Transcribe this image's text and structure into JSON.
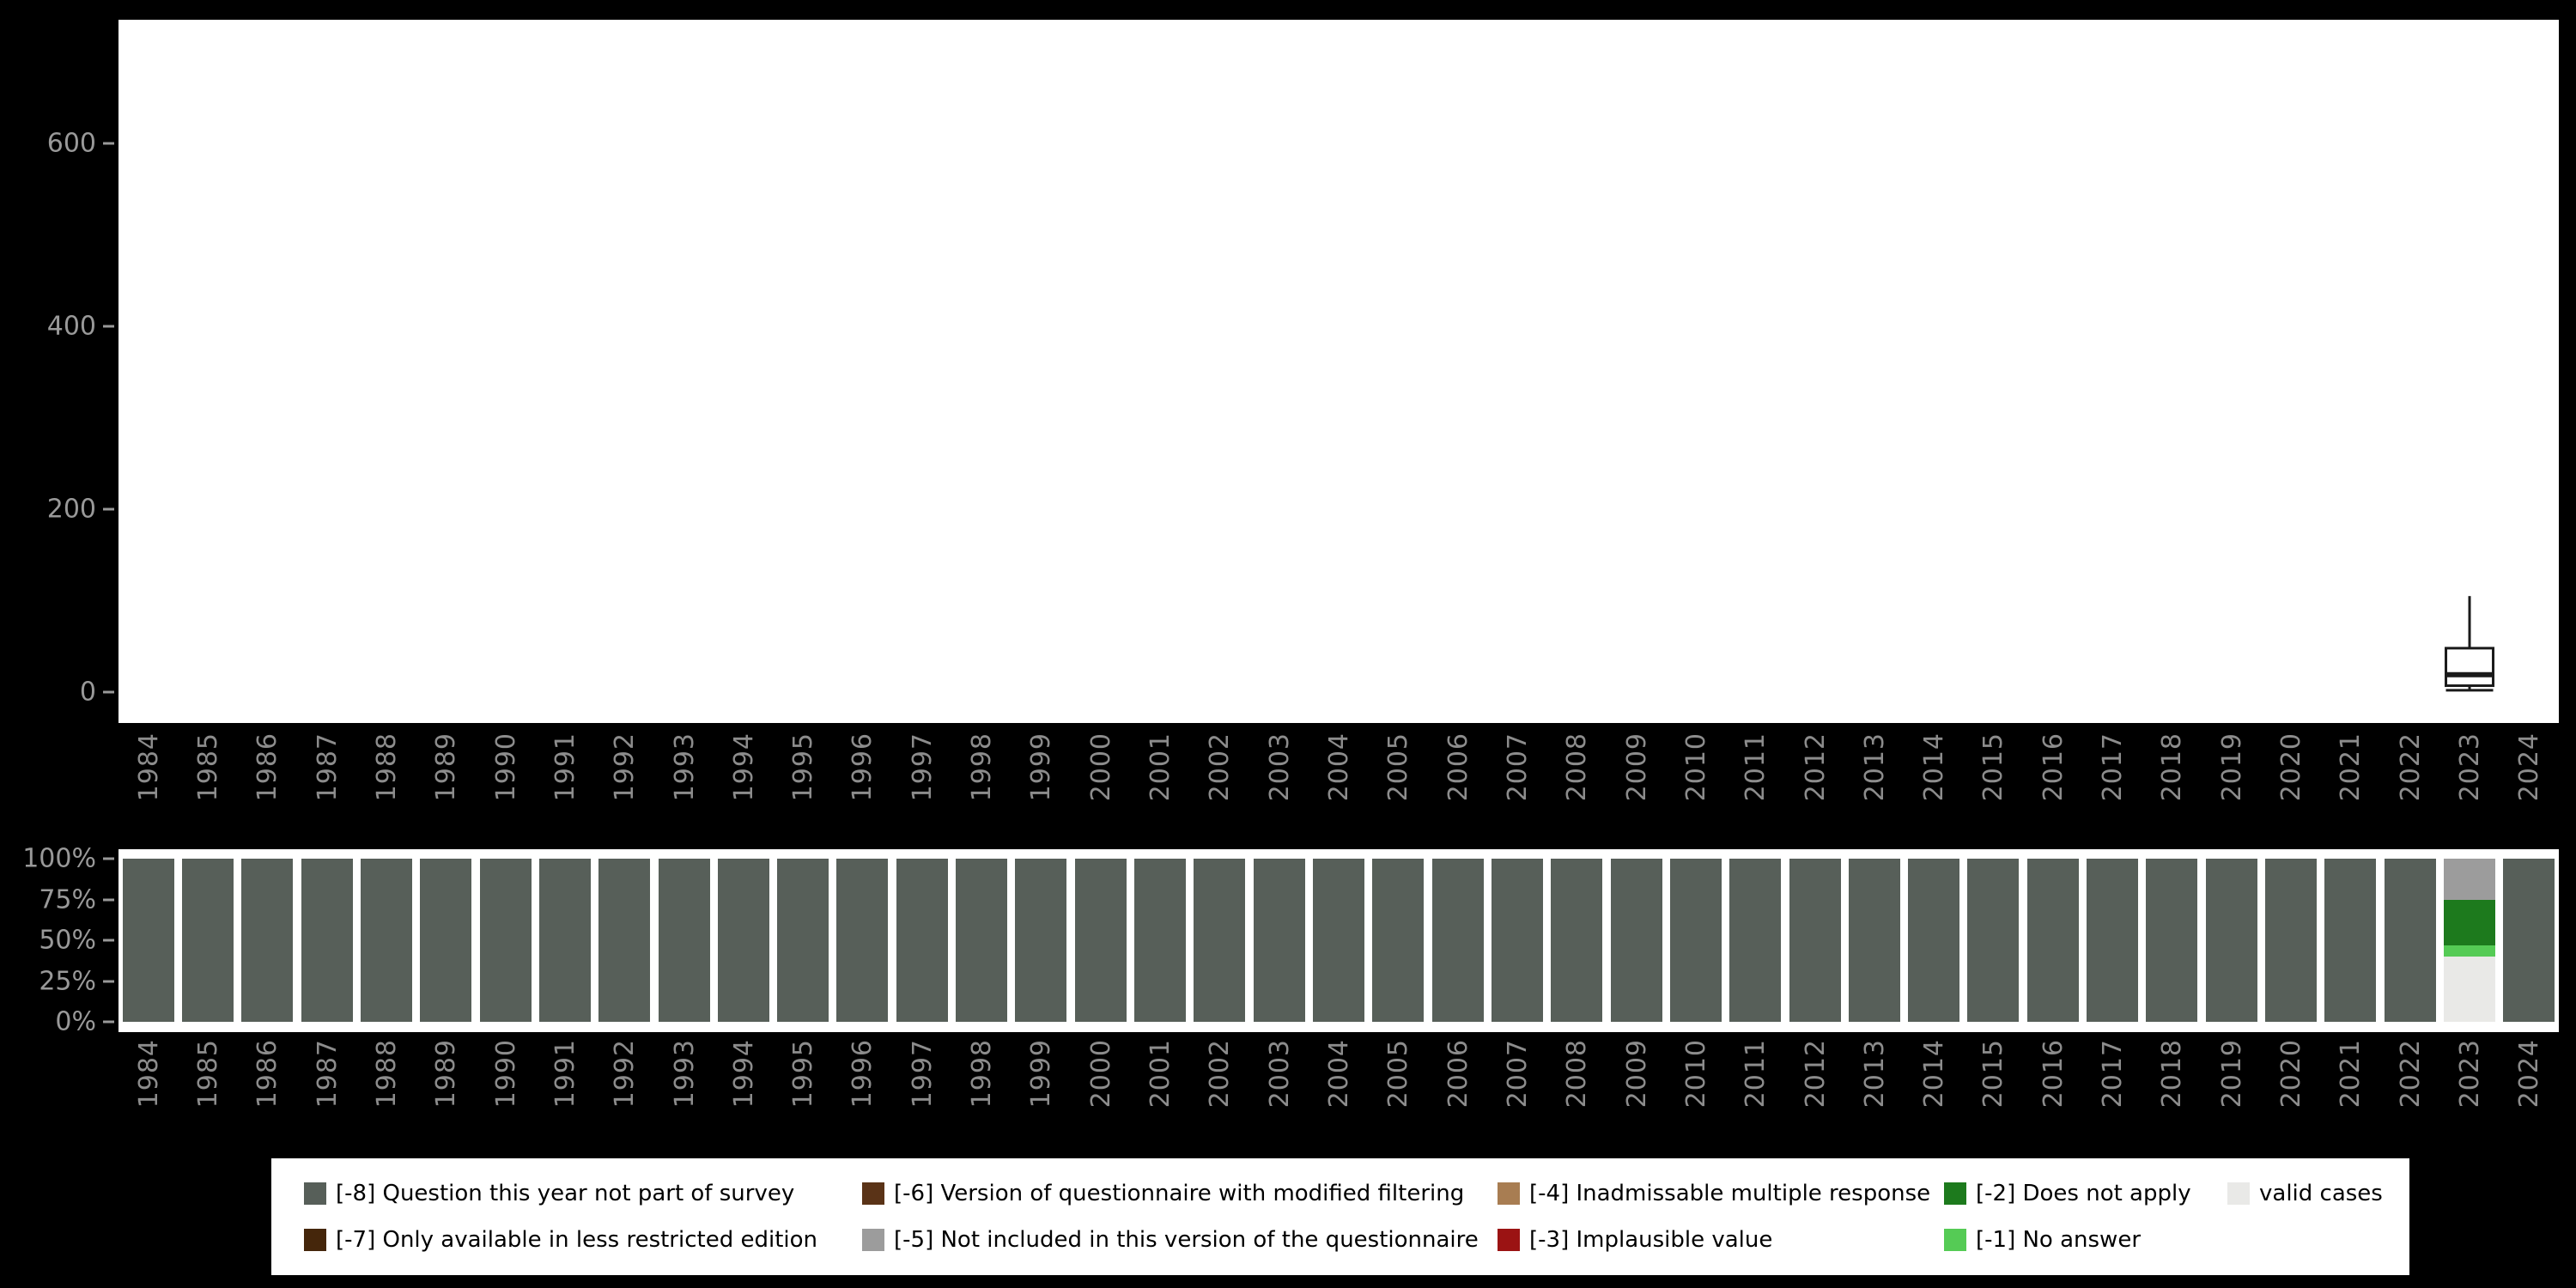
{
  "background": "#000000",
  "colors": {
    "-8": "#575f59",
    "-7": "#45260b",
    "-6": "#5a3317",
    "-5": "#9c9c9c",
    "-4": "#a87d52",
    "-3": "#9b1313",
    "-2": "#1d7a1d",
    "-1": "#55cb55",
    "valid": "#e9e9e7"
  },
  "chart_data": [
    {
      "type": "boxplot",
      "title": "",
      "ylim": [
        0,
        737
      ],
      "yticks": [
        0,
        200,
        400,
        600
      ],
      "categories": [
        "1984",
        "1985",
        "1986",
        "1987",
        "1988",
        "1989",
        "1990",
        "1991",
        "1992",
        "1993",
        "1994",
        "1995",
        "1996",
        "1997",
        "1998",
        "1999",
        "2000",
        "2001",
        "2002",
        "2003",
        "2004",
        "2005",
        "2006",
        "2007",
        "2008",
        "2009",
        "2010",
        "2011",
        "2012",
        "2013",
        "2014",
        "2015",
        "2016",
        "2017",
        "2018",
        "2019",
        "2020",
        "2021",
        "2022",
        "2023",
        "2024"
      ],
      "boxes": [
        {
          "category": "2023",
          "lower_whisker": 2,
          "q1": 7,
          "median": 19,
          "q3": 48,
          "upper_whisker": 105
        }
      ]
    },
    {
      "type": "bar",
      "stacked": true,
      "unit": "percent",
      "ylim": [
        0,
        100
      ],
      "ytick_labels": [
        "100%",
        "75%",
        "50%",
        "25%",
        "0%"
      ],
      "categories": [
        "1984",
        "1985",
        "1986",
        "1987",
        "1988",
        "1989",
        "1990",
        "1991",
        "1992",
        "1993",
        "1994",
        "1995",
        "1996",
        "1997",
        "1998",
        "1999",
        "2000",
        "2001",
        "2002",
        "2003",
        "2004",
        "2005",
        "2006",
        "2007",
        "2008",
        "2009",
        "2010",
        "2011",
        "2012",
        "2013",
        "2014",
        "2015",
        "2016",
        "2017",
        "2018",
        "2019",
        "2020",
        "2021",
        "2022",
        "2023",
        "2024"
      ],
      "bars": [
        {
          "year": "1984",
          "segments": [
            [
              "-8",
              100
            ]
          ]
        },
        {
          "year": "1985",
          "segments": [
            [
              "-8",
              100
            ]
          ]
        },
        {
          "year": "1986",
          "segments": [
            [
              "-8",
              100
            ]
          ]
        },
        {
          "year": "1987",
          "segments": [
            [
              "-8",
              100
            ]
          ]
        },
        {
          "year": "1988",
          "segments": [
            [
              "-8",
              100
            ]
          ]
        },
        {
          "year": "1989",
          "segments": [
            [
              "-8",
              100
            ]
          ]
        },
        {
          "year": "1990",
          "segments": [
            [
              "-8",
              100
            ]
          ]
        },
        {
          "year": "1991",
          "segments": [
            [
              "-8",
              100
            ]
          ]
        },
        {
          "year": "1992",
          "segments": [
            [
              "-8",
              100
            ]
          ]
        },
        {
          "year": "1993",
          "segments": [
            [
              "-8",
              100
            ]
          ]
        },
        {
          "year": "1994",
          "segments": [
            [
              "-8",
              100
            ]
          ]
        },
        {
          "year": "1995",
          "segments": [
            [
              "-8",
              100
            ]
          ]
        },
        {
          "year": "1996",
          "segments": [
            [
              "-8",
              100
            ]
          ]
        },
        {
          "year": "1997",
          "segments": [
            [
              "-8",
              100
            ]
          ]
        },
        {
          "year": "1998",
          "segments": [
            [
              "-8",
              100
            ]
          ]
        },
        {
          "year": "1999",
          "segments": [
            [
              "-8",
              100
            ]
          ]
        },
        {
          "year": "2000",
          "segments": [
            [
              "-8",
              100
            ]
          ]
        },
        {
          "year": "2001",
          "segments": [
            [
              "-8",
              100
            ]
          ]
        },
        {
          "year": "2002",
          "segments": [
            [
              "-8",
              100
            ]
          ]
        },
        {
          "year": "2003",
          "segments": [
            [
              "-8",
              100
            ]
          ]
        },
        {
          "year": "2004",
          "segments": [
            [
              "-8",
              100
            ]
          ]
        },
        {
          "year": "2005",
          "segments": [
            [
              "-8",
              100
            ]
          ]
        },
        {
          "year": "2006",
          "segments": [
            [
              "-8",
              100
            ]
          ]
        },
        {
          "year": "2007",
          "segments": [
            [
              "-8",
              100
            ]
          ]
        },
        {
          "year": "2008",
          "segments": [
            [
              "-8",
              100
            ]
          ]
        },
        {
          "year": "2009",
          "segments": [
            [
              "-8",
              100
            ]
          ]
        },
        {
          "year": "2010",
          "segments": [
            [
              "-8",
              100
            ]
          ]
        },
        {
          "year": "2011",
          "segments": [
            [
              "-8",
              100
            ]
          ]
        },
        {
          "year": "2012",
          "segments": [
            [
              "-8",
              100
            ]
          ]
        },
        {
          "year": "2013",
          "segments": [
            [
              "-8",
              100
            ]
          ]
        },
        {
          "year": "2014",
          "segments": [
            [
              "-8",
              100
            ]
          ]
        },
        {
          "year": "2015",
          "segments": [
            [
              "-8",
              100
            ]
          ]
        },
        {
          "year": "2016",
          "segments": [
            [
              "-8",
              100
            ]
          ]
        },
        {
          "year": "2017",
          "segments": [
            [
              "-8",
              100
            ]
          ]
        },
        {
          "year": "2018",
          "segments": [
            [
              "-8",
              100
            ]
          ]
        },
        {
          "year": "2019",
          "segments": [
            [
              "-8",
              100
            ]
          ]
        },
        {
          "year": "2020",
          "segments": [
            [
              "-8",
              100
            ]
          ]
        },
        {
          "year": "2021",
          "segments": [
            [
              "-8",
              100
            ]
          ]
        },
        {
          "year": "2022",
          "segments": [
            [
              "-8",
              100
            ]
          ]
        },
        {
          "year": "2023",
          "segments": [
            [
              "-5",
              25
            ],
            [
              "-2",
              28
            ],
            [
              "-1",
              7
            ],
            [
              "valid",
              40
            ]
          ]
        },
        {
          "year": "2024",
          "segments": [
            [
              "-8",
              100
            ]
          ]
        }
      ]
    }
  ],
  "legend": {
    "rows": [
      [
        {
          "key": "-8",
          "label": "[-8] Question this year not part of survey"
        },
        {
          "key": "-6",
          "label": "[-6] Version of questionnaire with modified filtering"
        },
        {
          "key": "-4",
          "label": "[-4] Inadmissable multiple response"
        },
        {
          "key": "-2",
          "label": "[-2] Does not apply"
        },
        {
          "key": "valid",
          "label": "valid cases"
        }
      ],
      [
        {
          "key": "-7",
          "label": "[-7] Only available in less restricted edition"
        },
        {
          "key": "-5",
          "label": "[-5] Not included in this version of the questionnaire"
        },
        {
          "key": "-3",
          "label": "[-3] Implausible value"
        },
        {
          "key": "-1",
          "label": "[-1] No answer"
        }
      ]
    ]
  }
}
